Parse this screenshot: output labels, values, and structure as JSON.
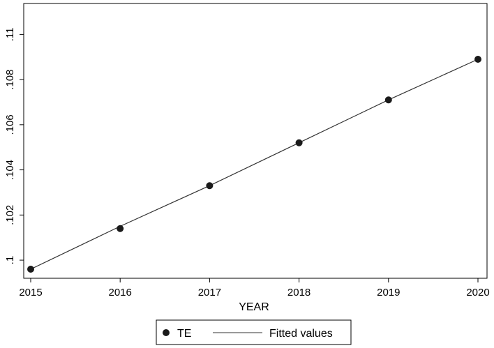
{
  "chart_data": {
    "type": "scatter",
    "title": "",
    "xlabel": "YEAR",
    "ylabel": "",
    "x": [
      2015,
      2016,
      2017,
      2018,
      2019,
      2020
    ],
    "xlim": [
      2015,
      2020
    ],
    "ylim": [
      0.0996,
      0.111
    ],
    "x_ticks": [
      "2015",
      "2016",
      "2017",
      "2018",
      "2019",
      "2020"
    ],
    "y_ticks": [
      {
        "value": 0.1,
        "label": ".1"
      },
      {
        "value": 0.102,
        "label": ".102"
      },
      {
        "value": 0.104,
        "label": ".104"
      },
      {
        "value": 0.106,
        "label": ".106"
      },
      {
        "value": 0.108,
        "label": ".108"
      },
      {
        "value": 0.11,
        "label": ".11"
      }
    ],
    "series": [
      {
        "name": "TE",
        "kind": "scatter",
        "values": [
          0.0996,
          0.1014,
          0.1033,
          0.1052,
          0.1071,
          0.1089
        ]
      },
      {
        "name": "Fitted values",
        "kind": "line",
        "values": [
          0.0996,
          0.1015,
          0.1033,
          0.1052,
          0.1071,
          0.1089
        ]
      }
    ],
    "grid": false,
    "legend": "bottom"
  }
}
